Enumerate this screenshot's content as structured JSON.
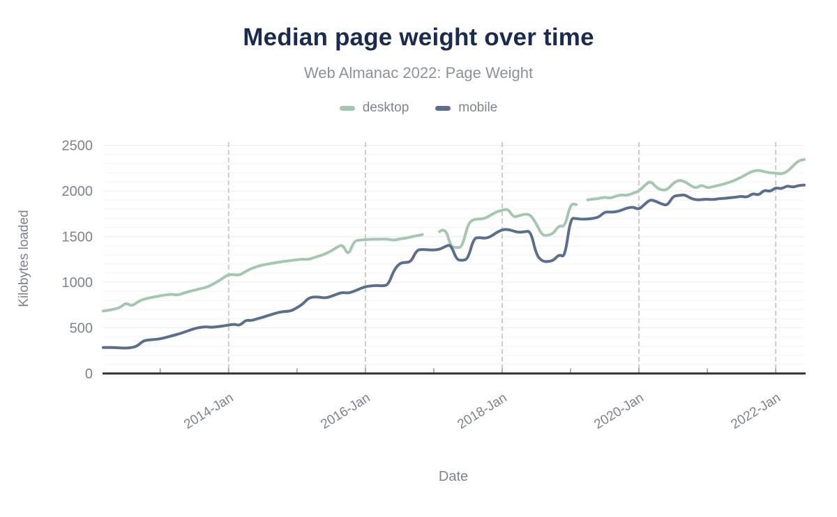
{
  "header": {
    "title": "Median page weight over time",
    "subtitle": "Web Almanac 2022: Page Weight"
  },
  "legend": {
    "items": [
      {
        "label": "desktop",
        "color": "#a5c7b0"
      },
      {
        "label": "mobile",
        "color": "#5b6e8e"
      }
    ]
  },
  "colors": {
    "title_text": "#1a2b4f",
    "subtitle_text": "#8c929c",
    "axis_text": "#7d838d",
    "axis_line": "#303030",
    "grid_minor": "#f4f4f4",
    "grid_major": "#ececec",
    "grid_dashed_vertical": "#c9cdcc",
    "year_tick": "#a9aeb3",
    "desktop_line": "#a5c7b0",
    "mobile_line": "#5b6e8e"
  },
  "chart_data": {
    "type": "line",
    "title": "Median page weight over time",
    "subtitle": "Web Almanac 2022: Page Weight",
    "xlabel": "Date",
    "ylabel": "Kilobytes loaded",
    "x_range": {
      "start": "2012-03",
      "end": "2022-06",
      "interval": "monthly"
    },
    "x_axis": {
      "labeled_ticks": [
        {
          "label": "2014-Jan",
          "year": 2014
        },
        {
          "label": "2016-Jan",
          "year": 2016
        },
        {
          "label": "2018-Jan",
          "year": 2018
        },
        {
          "label": "2020-Jan",
          "year": 2020
        },
        {
          "label": "2022-Jan",
          "year": 2022
        }
      ],
      "minor_tick_years": [
        2013,
        2014,
        2015,
        2016,
        2017,
        2018,
        2019,
        2020,
        2021,
        2022
      ]
    },
    "y_axis": {
      "ticks": [
        0,
        500,
        1000,
        1500,
        2000,
        2500
      ],
      "ylim": [
        0,
        2500
      ],
      "minor_grid_step": 100
    },
    "grid": {
      "horizontal": true,
      "vertical_dashed_at_labeled_ticks": true
    },
    "legend_position": "top",
    "series": [
      {
        "name": "desktop",
        "color": "#a5c7b0",
        "unit": "KB",
        "values": [
          684,
          693,
          706,
          724,
          775,
          737,
          782,
          813,
          826,
          840,
          851,
          862,
          869,
          858,
          878,
          898,
          912,
          928,
          942,
          970,
          1005,
          1045,
          1085,
          1082,
          1078,
          1120,
          1150,
          1172,
          1190,
          1200,
          1212,
          1222,
          1230,
          1238,
          1246,
          1254,
          1248,
          1272,
          1288,
          1312,
          1342,
          1382,
          1416,
          1288,
          1450,
          1462,
          1467,
          1472,
          1470,
          1474,
          1472,
          1458,
          1475,
          1482,
          1496,
          1510,
          1522,
          null,
          null,
          1554,
          1605,
          1390,
          1378,
          1385,
          1640,
          1690,
          1692,
          1700,
          1735,
          1772,
          1788,
          1806,
          1710,
          1730,
          1748,
          1738,
          1640,
          1515,
          1512,
          1535,
          1626,
          1604,
          1862,
          1850,
          null,
          1902,
          1912,
          1918,
          1932,
          1920,
          1945,
          1958,
          1950,
          1978,
          1998,
          2060,
          2112,
          2040,
          2008,
          2015,
          2085,
          2120,
          2105,
          2062,
          2030,
          2068,
          2032,
          2048,
          2062,
          2078,
          2098,
          2122,
          2152,
          2188,
          2218,
          2228,
          2212,
          2198,
          2196,
          2185,
          2212,
          2272,
          2332,
          2345
        ]
      },
      {
        "name": "mobile",
        "color": "#5b6e8e",
        "unit": "KB",
        "values": [
          284,
          285,
          283,
          280,
          278,
          284,
          300,
          358,
          368,
          372,
          380,
          395,
          412,
          428,
          448,
          470,
          492,
          505,
          512,
          505,
          512,
          520,
          530,
          540,
          525,
          585,
          578,
          600,
          615,
          637,
          655,
          673,
          680,
          686,
          720,
          760,
          826,
          840,
          835,
          826,
          845,
          870,
          889,
          880,
          900,
          928,
          952,
          960,
          965,
          960,
          970,
          1130,
          1208,
          1218,
          1222,
          1353,
          1360,
          1355,
          1352,
          1360,
          1391,
          1414,
          1246,
          1238,
          1255,
          1482,
          1490,
          1480,
          1500,
          1545,
          1575,
          1580,
          1560,
          1545,
          1555,
          1560,
          1300,
          1231,
          1225,
          1238,
          1307,
          1270,
          1705,
          1698,
          1690,
          1692,
          1700,
          1715,
          1770,
          1768,
          1772,
          1790,
          1815,
          1824,
          1795,
          1855,
          1907,
          1885,
          1858,
          1840,
          1945,
          1950,
          1960,
          1922,
          1902,
          1906,
          1910,
          1905,
          1915,
          1920,
          1926,
          1932,
          1942,
          1930,
          1975,
          1952,
          2012,
          1992,
          2038,
          2022,
          2058,
          2040,
          2060,
          2065
        ]
      }
    ]
  }
}
